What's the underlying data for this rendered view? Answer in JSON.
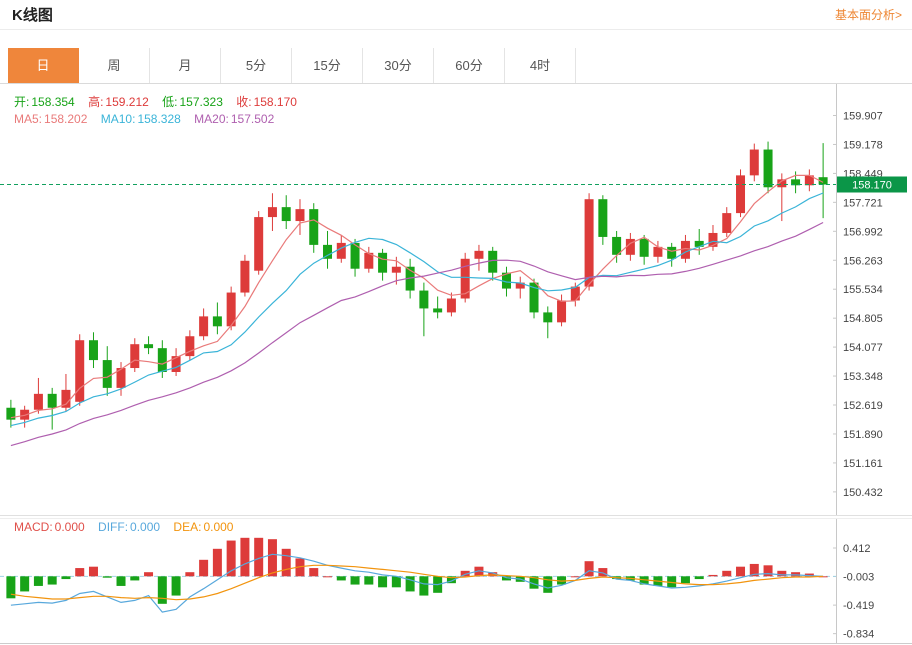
{
  "header": {
    "title": "K线图",
    "link_label": "基本面分析>"
  },
  "tabs": {
    "items": [
      {
        "label": "日",
        "active": true
      },
      {
        "label": "周",
        "active": false
      },
      {
        "label": "月",
        "active": false
      },
      {
        "label": "5分",
        "active": false
      },
      {
        "label": "15分",
        "active": false
      },
      {
        "label": "30分",
        "active": false
      },
      {
        "label": "60分",
        "active": false
      },
      {
        "label": "4时",
        "active": false
      }
    ]
  },
  "ohlc_row": {
    "open": {
      "label": "开:",
      "value": "158.354"
    },
    "high": {
      "label": "高:",
      "value": "159.212"
    },
    "low": {
      "label": "低:",
      "value": "157.323"
    },
    "close": {
      "label": "收:",
      "value": "158.170"
    }
  },
  "ma_row": {
    "ma5": {
      "label": "MA5:",
      "value": "158.202"
    },
    "ma10": {
      "label": "MA10:",
      "value": "158.328"
    },
    "ma20": {
      "label": "MA20:",
      "value": "157.502"
    }
  },
  "macd_row": {
    "macd": {
      "label": "MACD:",
      "value": "0.000"
    },
    "diff": {
      "label": "DIFF:",
      "value": "0.000"
    },
    "dea": {
      "label": "DEA:",
      "value": "0.000"
    }
  },
  "chart_data": {
    "type": "candlestick",
    "title": "K线图",
    "interval": "日",
    "ylim": [
      149.85,
      160.7
    ],
    "y_ticks": [
      159.907,
      159.178,
      158.449,
      157.721,
      156.992,
      156.263,
      155.534,
      154.805,
      154.077,
      153.348,
      152.619,
      151.89,
      151.161,
      150.432
    ],
    "current_price": 158.17,
    "ohlc_display": {
      "open": 158.354,
      "high": 159.212,
      "low": 157.323,
      "close": 158.17
    },
    "ma_display": {
      "ma5": 158.202,
      "ma10": 158.328,
      "ma20": 157.502
    },
    "ma_periods": [
      5,
      10,
      20
    ],
    "grid": false,
    "legend_position": "top-left",
    "candles": [
      [
        152.55,
        152.75,
        152.05,
        152.25
      ],
      [
        152.25,
        152.6,
        152.05,
        152.5
      ],
      [
        152.5,
        153.3,
        152.4,
        152.9
      ],
      [
        152.9,
        153.05,
        152.0,
        152.55
      ],
      [
        152.55,
        153.4,
        152.45,
        153.0
      ],
      [
        152.7,
        154.4,
        152.6,
        154.25
      ],
      [
        154.25,
        154.45,
        153.55,
        153.75
      ],
      [
        153.75,
        154.1,
        152.85,
        153.05
      ],
      [
        153.05,
        153.7,
        152.85,
        153.55
      ],
      [
        153.55,
        154.3,
        153.45,
        154.15
      ],
      [
        154.15,
        154.35,
        153.9,
        154.05
      ],
      [
        154.05,
        154.25,
        153.3,
        153.45
      ],
      [
        153.45,
        154.05,
        153.35,
        153.85
      ],
      [
        153.85,
        154.5,
        153.75,
        154.35
      ],
      [
        154.35,
        155.05,
        154.25,
        154.85
      ],
      [
        154.85,
        155.2,
        154.4,
        154.6
      ],
      [
        154.6,
        155.6,
        154.5,
        155.45
      ],
      [
        155.45,
        156.4,
        155.35,
        156.25
      ],
      [
        156.0,
        157.5,
        155.9,
        157.35
      ],
      [
        157.35,
        157.95,
        157.0,
        157.6
      ],
      [
        157.6,
        157.9,
        157.05,
        157.25
      ],
      [
        157.25,
        157.8,
        156.9,
        157.55
      ],
      [
        157.55,
        157.7,
        156.45,
        156.65
      ],
      [
        156.65,
        157.0,
        156.05,
        156.3
      ],
      [
        156.3,
        156.9,
        156.2,
        156.7
      ],
      [
        156.7,
        156.8,
        155.85,
        156.05
      ],
      [
        156.05,
        156.6,
        155.95,
        156.45
      ],
      [
        156.45,
        156.55,
        155.75,
        155.95
      ],
      [
        155.95,
        156.35,
        155.65,
        156.1
      ],
      [
        156.1,
        156.3,
        155.3,
        155.5
      ],
      [
        155.5,
        155.7,
        154.35,
        155.05
      ],
      [
        155.05,
        155.35,
        154.8,
        154.95
      ],
      [
        154.95,
        155.45,
        154.85,
        155.3
      ],
      [
        155.3,
        156.45,
        155.2,
        156.3
      ],
      [
        156.3,
        156.65,
        156.0,
        156.5
      ],
      [
        156.5,
        156.6,
        155.75,
        155.95
      ],
      [
        155.95,
        156.1,
        155.35,
        155.55
      ],
      [
        155.55,
        155.85,
        155.3,
        155.7
      ],
      [
        155.7,
        155.8,
        154.8,
        154.95
      ],
      [
        154.95,
        155.1,
        154.3,
        154.7
      ],
      [
        154.7,
        155.4,
        154.6,
        155.25
      ],
      [
        155.25,
        155.7,
        155.1,
        155.6
      ],
      [
        155.6,
        157.95,
        155.5,
        157.8
      ],
      [
        157.8,
        157.9,
        156.65,
        156.85
      ],
      [
        156.85,
        157.0,
        156.2,
        156.4
      ],
      [
        156.4,
        156.95,
        156.25,
        156.8
      ],
      [
        156.8,
        156.9,
        156.15,
        156.35
      ],
      [
        156.35,
        156.75,
        156.2,
        156.6
      ],
      [
        156.6,
        156.7,
        156.1,
        156.3
      ],
      [
        156.3,
        156.9,
        156.2,
        156.75
      ],
      [
        156.75,
        157.05,
        156.4,
        156.6
      ],
      [
        156.6,
        157.15,
        156.5,
        156.95
      ],
      [
        156.95,
        157.6,
        156.85,
        157.45
      ],
      [
        157.45,
        158.55,
        157.35,
        158.4
      ],
      [
        158.4,
        159.2,
        158.25,
        159.05
      ],
      [
        159.05,
        159.25,
        157.95,
        158.1
      ],
      [
        158.1,
        158.45,
        157.25,
        158.3
      ],
      [
        158.3,
        158.5,
        157.95,
        158.15
      ],
      [
        158.15,
        158.55,
        158.0,
        158.4
      ],
      [
        158.354,
        159.212,
        157.323,
        158.17
      ]
    ],
    "prior_closes_estimated": [
      150.55,
      150.7,
      150.85,
      150.95,
      151.05,
      151.15,
      151.25,
      151.35,
      151.5,
      151.6,
      151.7,
      151.8,
      151.9,
      152.0,
      152.1,
      152.2,
      152.28,
      152.35,
      152.42
    ],
    "macd": {
      "y_ticks": [
        0.412,
        -0.003,
        -0.419,
        -0.834
      ],
      "ylim": [
        -0.97,
        0.63
      ],
      "display": {
        "macd": 0.0,
        "diff": 0.0,
        "dea": 0.0
      },
      "hist_formula": "2*(diff-dea)",
      "diff": [
        -0.42,
        -0.4,
        -0.38,
        -0.39,
        -0.35,
        -0.25,
        -0.22,
        -0.3,
        -0.38,
        -0.35,
        -0.28,
        -0.52,
        -0.48,
        -0.3,
        -0.18,
        -0.05,
        0.08,
        0.18,
        0.26,
        0.32,
        0.3,
        0.27,
        0.22,
        0.16,
        0.12,
        0.08,
        0.06,
        0.02,
        0.0,
        -0.05,
        -0.11,
        -0.12,
        -0.07,
        0.03,
        0.08,
        0.05,
        -0.02,
        -0.04,
        -0.11,
        -0.17,
        -0.13,
        -0.06,
        0.08,
        0.05,
        -0.04,
        -0.06,
        -0.11,
        -0.14,
        -0.17,
        -0.16,
        -0.14,
        -0.11,
        -0.07,
        -0.02,
        0.03,
        0.04,
        0.02,
        0.02,
        0.01,
        0.0
      ],
      "dea": [
        -0.26,
        -0.29,
        -0.31,
        -0.33,
        -0.33,
        -0.31,
        -0.29,
        -0.29,
        -0.31,
        -0.32,
        -0.31,
        -0.32,
        -0.34,
        -0.33,
        -0.3,
        -0.25,
        -0.18,
        -0.1,
        -0.02,
        0.05,
        0.1,
        0.14,
        0.16,
        0.16,
        0.15,
        0.14,
        0.12,
        0.1,
        0.08,
        0.06,
        0.03,
        0.0,
        -0.02,
        -0.01,
        0.01,
        0.02,
        0.01,
        0.0,
        -0.02,
        -0.05,
        -0.07,
        -0.06,
        -0.03,
        -0.01,
        -0.02,
        -0.03,
        -0.05,
        -0.07,
        -0.09,
        -0.11,
        -0.12,
        -0.12,
        -0.11,
        -0.09,
        -0.06,
        -0.04,
        -0.02,
        -0.01,
        -0.01,
        0.0
      ]
    },
    "colors": {
      "up": "#dd3b3a",
      "down": "#18a318",
      "ma5": "#e97a7a",
      "ma10": "#3ab4d8",
      "ma20": "#af5faf",
      "price_line": "#12a05e",
      "badge_bg": "#0b9648",
      "badge_text": "#ffffff",
      "diff": "#58a8dc",
      "dea": "#f2940e",
      "zero_line": "#9fd4e6",
      "macd_label": "#e0504a",
      "tab_active_bg": "#ef863b",
      "link": "#ee8633",
      "axis": "#c8c8c8",
      "tick_text": "#444444"
    }
  }
}
